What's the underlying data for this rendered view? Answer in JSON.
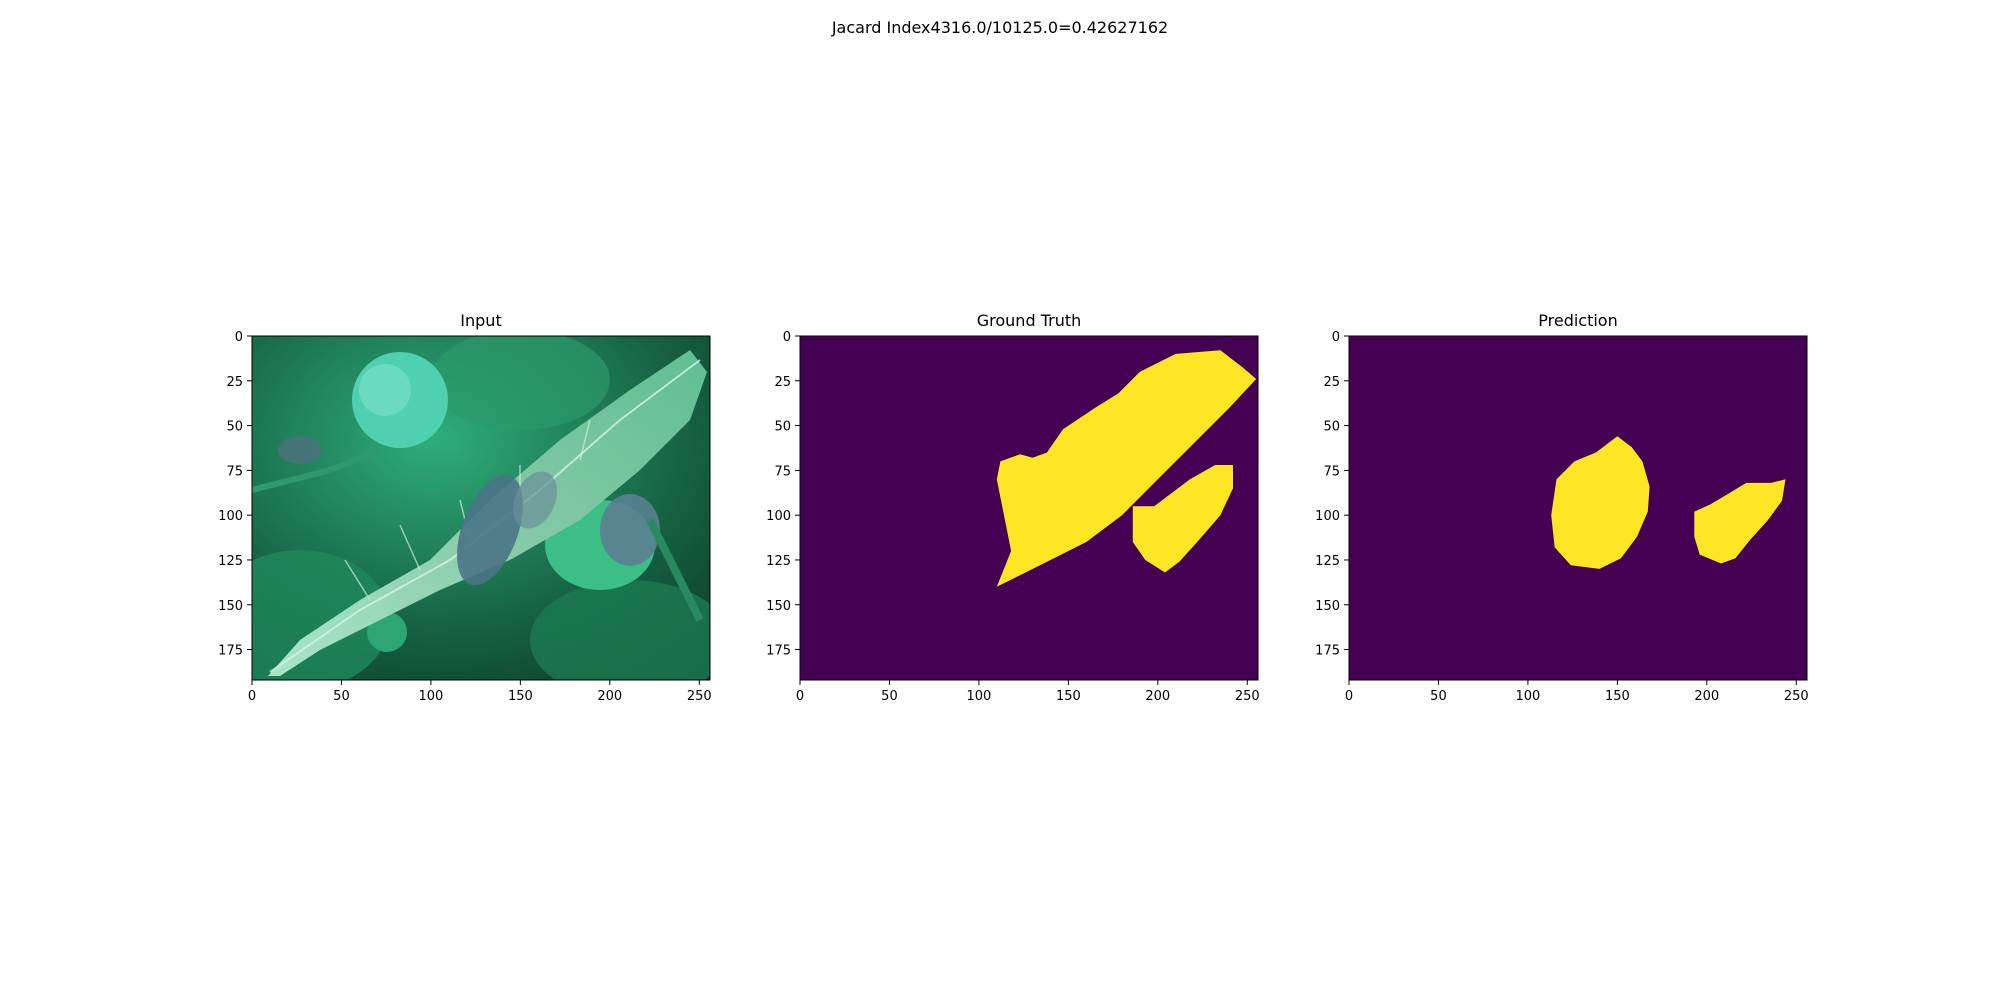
{
  "figure": {
    "suptitle": "Jacard Index4316.0/10125.0=0.42627162"
  },
  "colors": {
    "mask_background": "#440154",
    "mask_foreground": "#fde725",
    "leaf_light": "#7fd9ad",
    "leaf_dark": "#0f4a33",
    "lesion": "#4a7486"
  },
  "chart_data": [
    {
      "type": "heatmap",
      "title": "Input",
      "content": "image",
      "xlim": [
        0,
        256
      ],
      "ylim": [
        192,
        0
      ],
      "xticks": [
        0,
        50,
        100,
        150,
        200,
        250
      ],
      "yticks": [
        0,
        25,
        50,
        75,
        100,
        125,
        150,
        175
      ]
    },
    {
      "type": "heatmap",
      "title": "Ground Truth",
      "content": "binary-mask",
      "xlim": [
        0,
        256
      ],
      "ylim": [
        192,
        0
      ],
      "xticks": [
        0,
        50,
        100,
        150,
        200,
        250
      ],
      "yticks": [
        0,
        25,
        50,
        75,
        100,
        125,
        150,
        175
      ],
      "mask_regions": [
        [
          [
            110,
            80
          ],
          [
            112,
            70
          ],
          [
            123,
            66
          ],
          [
            130,
            68
          ],
          [
            138,
            65
          ],
          [
            147,
            52
          ],
          [
            165,
            40
          ],
          [
            178,
            32
          ],
          [
            190,
            20
          ],
          [
            210,
            10
          ],
          [
            235,
            8
          ],
          [
            248,
            18
          ],
          [
            255,
            24
          ],
          [
            240,
            40
          ],
          [
            220,
            60
          ],
          [
            200,
            80
          ],
          [
            180,
            100
          ],
          [
            160,
            115
          ],
          [
            140,
            125
          ],
          [
            120,
            135
          ],
          [
            110,
            140
          ],
          [
            118,
            120
          ]
        ],
        [
          [
            186,
            95
          ],
          [
            198,
            95
          ],
          [
            218,
            80
          ],
          [
            232,
            72
          ],
          [
            242,
            72
          ],
          [
            242,
            85
          ],
          [
            235,
            100
          ],
          [
            222,
            115
          ],
          [
            212,
            126
          ],
          [
            204,
            132
          ],
          [
            193,
            125
          ],
          [
            186,
            115
          ]
        ]
      ]
    },
    {
      "type": "heatmap",
      "title": "Prediction",
      "content": "binary-mask",
      "xlim": [
        0,
        256
      ],
      "ylim": [
        192,
        0
      ],
      "xticks": [
        0,
        50,
        100,
        150,
        200,
        250
      ],
      "yticks": [
        0,
        25,
        50,
        75,
        100,
        125,
        150,
        175
      ],
      "mask_regions": [
        [
          [
            150,
            56
          ],
          [
            158,
            62
          ],
          [
            164,
            70
          ],
          [
            168,
            84
          ],
          [
            167,
            98
          ],
          [
            161,
            112
          ],
          [
            152,
            124
          ],
          [
            140,
            130
          ],
          [
            124,
            128
          ],
          [
            115,
            118
          ],
          [
            113,
            100
          ],
          [
            116,
            80
          ],
          [
            126,
            70
          ],
          [
            138,
            65
          ]
        ],
        [
          [
            212,
            88
          ],
          [
            222,
            82
          ],
          [
            236,
            82
          ],
          [
            244,
            80
          ],
          [
            242,
            92
          ],
          [
            234,
            103
          ],
          [
            224,
            114
          ],
          [
            216,
            124
          ],
          [
            208,
            127
          ],
          [
            196,
            122
          ],
          [
            193,
            112
          ],
          [
            193,
            98
          ],
          [
            202,
            94
          ]
        ]
      ]
    }
  ]
}
